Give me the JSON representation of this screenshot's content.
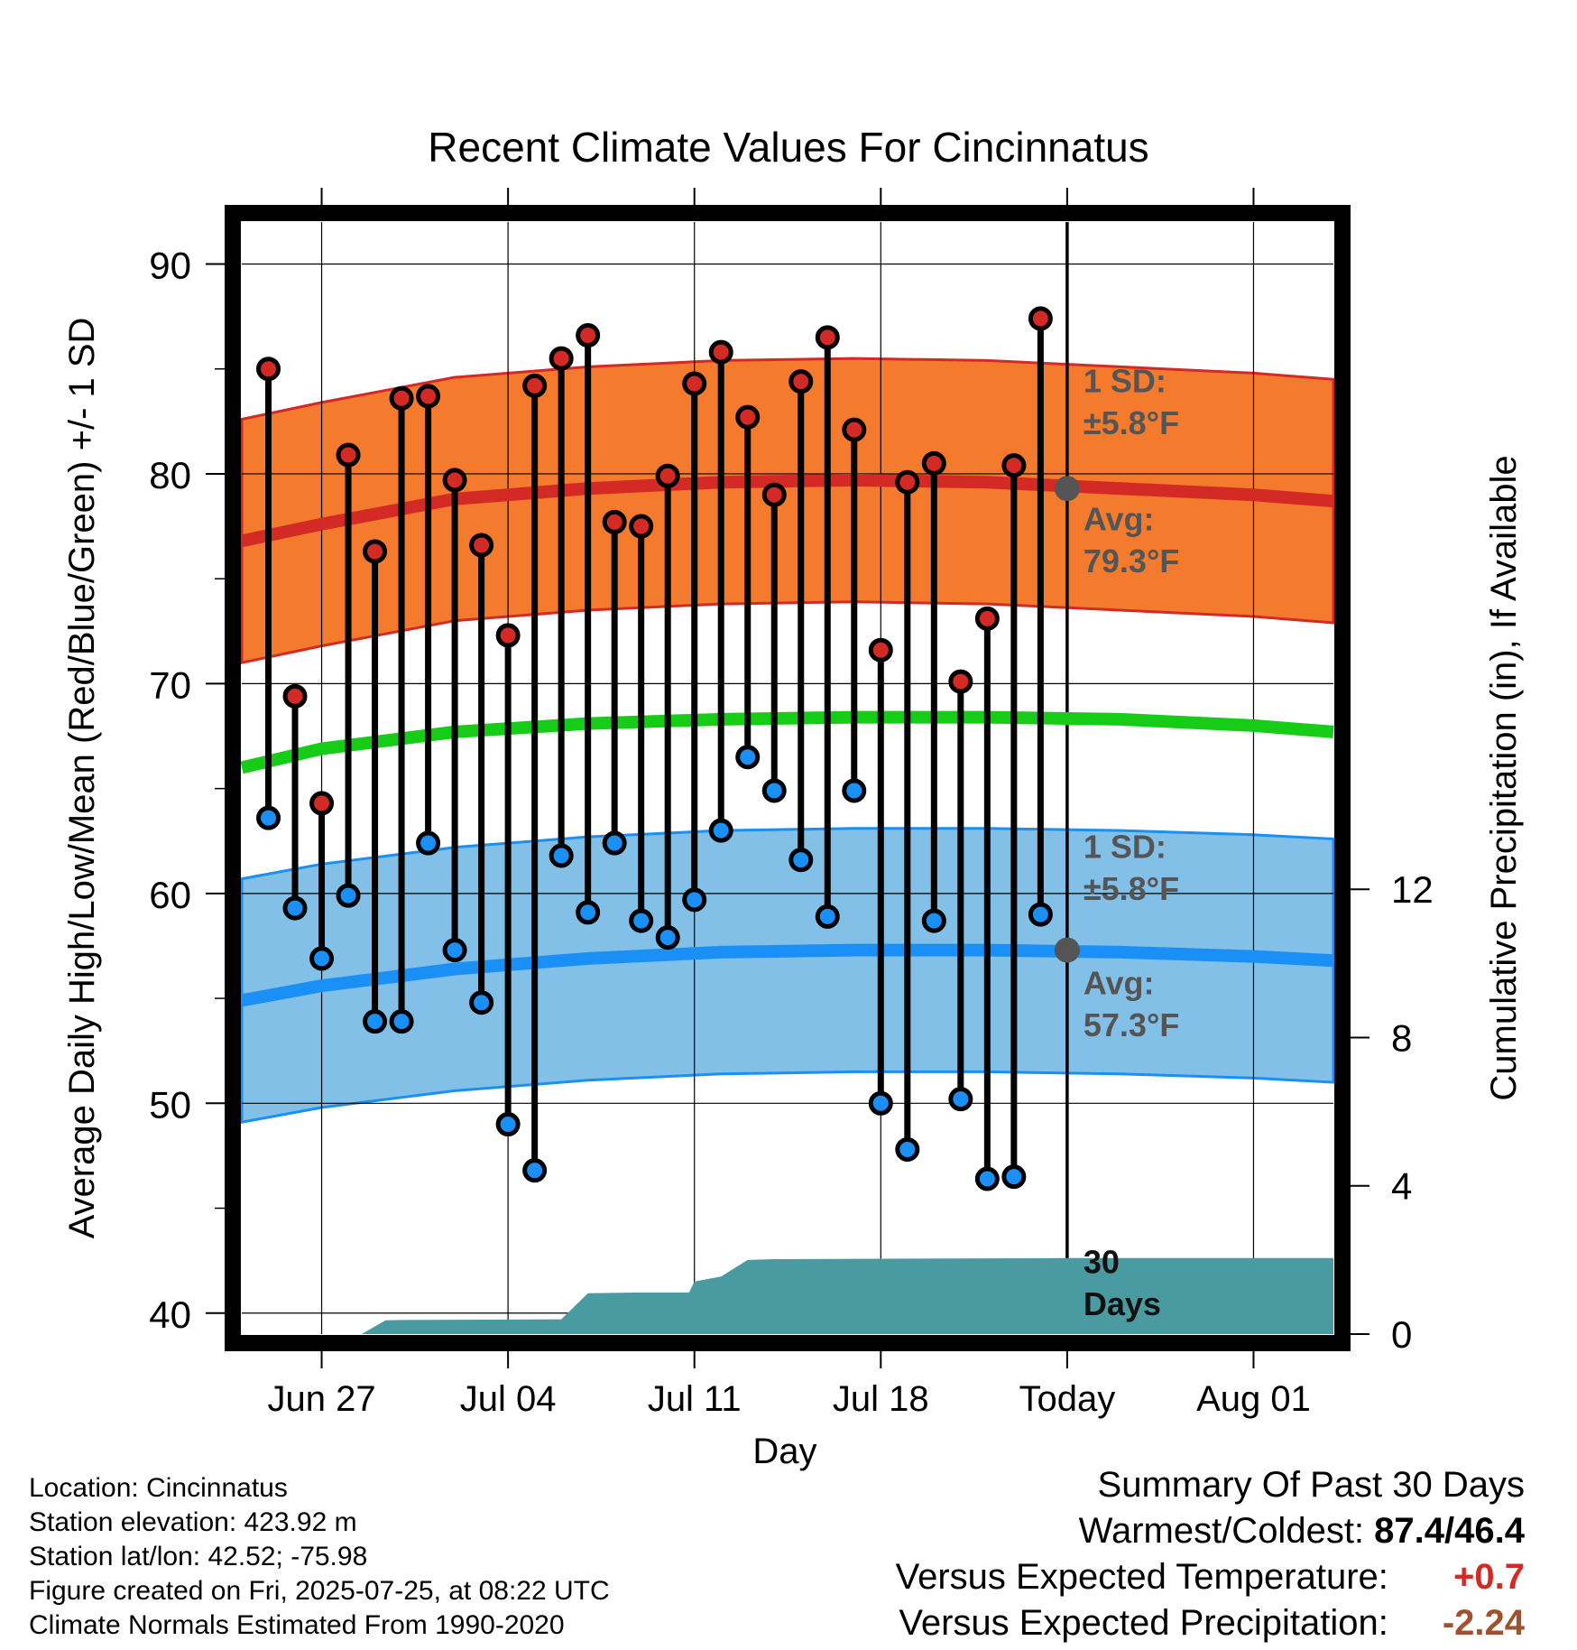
{
  "title": "Recent Climate Values For Cincinnatus",
  "ylabel_left": "Average Daily High/Low/Mean (Red/Blue/Green) +/- 1 SD",
  "ylabel_right": "Cumulative Precipitation (in), If Available",
  "xlabel": "Day",
  "annotations": {
    "high_sd_label": "1 SD:",
    "high_sd_value": "±5.8°F",
    "high_avg_label": "Avg:",
    "high_avg_value": "79.3°F",
    "low_sd_label": "1 SD:",
    "low_sd_value": "±5.8°F",
    "low_avg_label": "Avg:",
    "low_avg_value": "57.3°F",
    "days_line1": "30",
    "days_line2": "Days"
  },
  "meta": {
    "location": "Location: Cincinnatus",
    "elevation": "Station elevation: 423.92 m",
    "latlon": "Station lat/lon: 42.52; -75.98",
    "created": "Figure created on Fri, 2025-07-25, at 08:22 UTC",
    "normals": "Climate Normals Estimated From 1990-2020"
  },
  "summary": {
    "heading": "Summary Of Past 30 Days",
    "warmest_label": "Warmest/Coldest:",
    "warmest_value": "87.4/46.4",
    "temp_label": "Versus Expected Temperature:",
    "temp_value": "+0.7",
    "precip_label": "Versus Expected Precipitation:",
    "precip_value": "-2.24"
  },
  "colors": {
    "high_band": "#f47a2d",
    "high_line": "#d42a26",
    "low_band": "#82c0e8",
    "low_line": "#1a8ff5",
    "mean_line": "#16cc16",
    "precip": "#4a9aa2",
    "high_dot": "#d42a26",
    "low_dot": "#1a8ff5",
    "today_marker": "#555555",
    "summary_warm": "#d42a26",
    "summary_dry": "#a0522d"
  },
  "chart_data": {
    "type": "line",
    "x_tick_labels": [
      "Jun 27",
      "Jul 04",
      "Jul 11",
      "Jul 18",
      "Today",
      "Aug 01"
    ],
    "x_tick_days": [
      0,
      7,
      14,
      21,
      28,
      35
    ],
    "x_range_days": [
      -3,
      38
    ],
    "ylim": [
      39,
      92
    ],
    "y_ticks": [
      40,
      50,
      60,
      70,
      80,
      90
    ],
    "y2lim": [
      0,
      30
    ],
    "y2_ticks": [
      0,
      4,
      8,
      12
    ],
    "days": [
      -2,
      -1,
      0,
      1,
      2,
      3,
      4,
      5,
      6,
      7,
      8,
      9,
      10,
      11,
      12,
      13,
      14,
      15,
      16,
      17,
      18,
      19,
      20,
      21,
      22,
      23,
      24,
      25,
      26,
      27
    ],
    "highs": [
      85.0,
      69.4,
      64.3,
      80.9,
      76.3,
      83.6,
      83.7,
      79.7,
      76.6,
      72.3,
      84.2,
      85.5,
      86.6,
      77.7,
      77.5,
      79.9,
      84.3,
      85.8,
      82.7,
      79.0,
      84.4,
      86.5,
      82.1,
      71.6,
      79.6,
      80.5,
      70.1,
      73.1,
      80.4,
      87.4
    ],
    "lows": [
      63.6,
      59.3,
      56.9,
      59.9,
      53.9,
      53.9,
      62.4,
      57.3,
      54.8,
      49.0,
      46.8,
      61.8,
      59.1,
      62.4,
      58.7,
      57.9,
      59.7,
      63.0,
      66.5,
      64.9,
      61.6,
      58.9,
      64.9,
      50.0,
      47.8,
      58.7,
      50.2,
      46.4,
      46.5,
      59.0
    ],
    "normal_days": [
      -3,
      0,
      5,
      10,
      15,
      20,
      25,
      30,
      35,
      38
    ],
    "normal_high": [
      76.8,
      77.6,
      78.8,
      79.3,
      79.6,
      79.7,
      79.6,
      79.3,
      79.0,
      78.7
    ],
    "normal_low": [
      54.9,
      55.6,
      56.4,
      56.9,
      57.2,
      57.3,
      57.3,
      57.2,
      57.0,
      56.8
    ],
    "normal_mean": [
      66.0,
      66.9,
      67.7,
      68.1,
      68.3,
      68.4,
      68.4,
      68.3,
      68.0,
      67.7
    ],
    "high_sd": 5.8,
    "low_sd": 5.8,
    "today_day": 28,
    "today_avg_high": 79.3,
    "today_avg_low": 57.3,
    "precip_days": [
      1.5,
      2.4,
      3.0,
      9.0,
      10.0,
      11.8,
      13.8,
      14.0,
      15.0,
      16.0,
      17.0,
      28.0,
      38.0
    ],
    "precip_values": [
      0.0,
      0.37,
      0.38,
      0.4,
      1.1,
      1.12,
      1.12,
      1.42,
      1.55,
      2.0,
      2.02,
      2.05,
      2.05
    ]
  }
}
